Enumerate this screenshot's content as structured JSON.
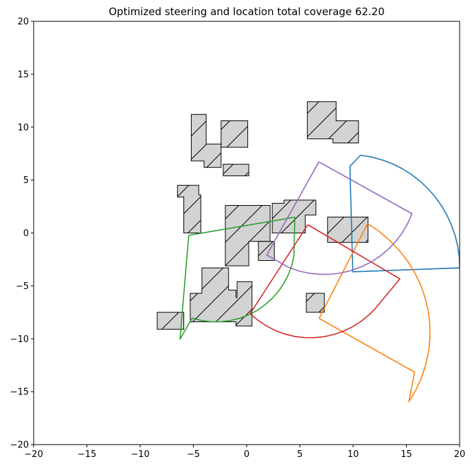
{
  "chart_data": {
    "type": "line",
    "title": "Optimized steering and location total coverage 62.20",
    "xlabel": "",
    "ylabel": "",
    "xlim": [
      -20,
      20
    ],
    "ylim": [
      -20,
      20
    ],
    "xticks": [
      -20,
      -15,
      -10,
      -5,
      0,
      5,
      10,
      15,
      20
    ],
    "yticks": [
      -20,
      -15,
      -10,
      -5,
      0,
      5,
      10,
      15,
      20
    ],
    "xtick_labels": [
      "−20",
      "−15",
      "−10",
      "−5",
      "0",
      "5",
      "10",
      "15",
      "20"
    ],
    "ytick_labels": [
      "−20",
      "−15",
      "−10",
      "−5",
      "0",
      "5",
      "10",
      "15",
      "20"
    ],
    "grid": false,
    "obstacle_style": {
      "fill": "#d3d3d3",
      "stroke": "#000000",
      "hatch": "/"
    },
    "obstacles": [
      [
        [
          -5.2,
          11.2
        ],
        [
          -3.8,
          11.2
        ],
        [
          -3.8,
          8.4
        ],
        [
          -2.4,
          8.4
        ],
        [
          -2.4,
          6.2
        ],
        [
          -4.0,
          6.2
        ],
        [
          -4.0,
          6.8
        ],
        [
          -5.2,
          6.8
        ]
      ],
      [
        [
          -2.4,
          10.6
        ],
        [
          0.1,
          10.6
        ],
        [
          0.1,
          8.1
        ],
        [
          -2.4,
          8.1
        ]
      ],
      [
        [
          -2.2,
          6.5
        ],
        [
          0.2,
          6.5
        ],
        [
          0.2,
          5.4
        ],
        [
          -2.2,
          5.4
        ]
      ],
      [
        [
          5.7,
          12.4
        ],
        [
          8.4,
          12.4
        ],
        [
          8.4,
          10.6
        ],
        [
          10.5,
          10.6
        ],
        [
          10.5,
          8.5
        ],
        [
          8.1,
          8.5
        ],
        [
          8.1,
          8.9
        ],
        [
          5.7,
          8.9
        ]
      ],
      [
        [
          -6.5,
          4.5
        ],
        [
          -4.5,
          4.5
        ],
        [
          -4.5,
          3.6
        ],
        [
          -4.3,
          3.6
        ],
        [
          -4.3,
          0.0
        ],
        [
          -5.9,
          0.0
        ],
        [
          -5.9,
          3.4
        ],
        [
          -6.5,
          3.4
        ]
      ],
      [
        [
          -2.0,
          2.6
        ],
        [
          2.2,
          2.6
        ],
        [
          2.2,
          -0.8
        ],
        [
          1.0,
          -0.8
        ],
        [
          1.0,
          -0.8
        ],
        [
          0.2,
          -0.8
        ],
        [
          0.2,
          -3.1
        ],
        [
          -2.0,
          -3.1
        ]
      ],
      [
        [
          1.1,
          -0.8
        ],
        [
          2.6,
          -0.8
        ],
        [
          2.6,
          -2.6
        ],
        [
          1.1,
          -2.6
        ]
      ],
      [
        [
          2.4,
          2.8
        ],
        [
          3.5,
          2.8
        ],
        [
          3.5,
          3.1
        ],
        [
          6.5,
          3.1
        ],
        [
          6.5,
          1.7
        ],
        [
          5.5,
          1.7
        ],
        [
          5.5,
          0.0
        ],
        [
          2.4,
          0.0
        ]
      ],
      [
        [
          7.6,
          1.5
        ],
        [
          11.4,
          1.5
        ],
        [
          11.4,
          -0.9
        ],
        [
          7.6,
          -0.9
        ]
      ],
      [
        [
          5.6,
          -5.7
        ],
        [
          7.3,
          -5.7
        ],
        [
          7.3,
          -7.5
        ],
        [
          5.6,
          -7.5
        ]
      ],
      [
        [
          -4.2,
          -3.3
        ],
        [
          -1.7,
          -3.3
        ],
        [
          -1.7,
          -5.4
        ],
        [
          -1.0,
          -5.4
        ],
        [
          -1.0,
          -6.1
        ],
        [
          -0.9,
          -6.1
        ],
        [
          -0.9,
          -4.6
        ],
        [
          0.5,
          -4.6
        ],
        [
          0.5,
          -8.8
        ],
        [
          -1.0,
          -8.8
        ],
        [
          -1.0,
          -8.4
        ],
        [
          -5.3,
          -8.4
        ],
        [
          -5.3,
          -5.7
        ],
        [
          -4.2,
          -5.7
        ]
      ],
      [
        [
          -8.4,
          -7.5
        ],
        [
          -5.9,
          -7.5
        ],
        [
          -5.9,
          -9.1
        ],
        [
          -8.4,
          -9.1
        ]
      ]
    ],
    "series": [
      {
        "color": "#1f77b4",
        "points": [
          [
            20.0,
            -3.3
          ],
          [
            19.97,
            -2.27
          ],
          [
            19.82,
            -1.25
          ],
          [
            19.58,
            -0.25
          ],
          [
            19.24,
            0.73
          ],
          [
            18.81,
            1.67
          ],
          [
            18.3,
            2.57
          ],
          [
            17.7,
            3.41
          ],
          [
            17.03,
            4.19
          ],
          [
            16.28,
            4.9
          ],
          [
            15.47,
            5.53
          ],
          [
            14.6,
            6.08
          ],
          [
            13.68,
            6.54
          ],
          [
            12.71,
            6.91
          ],
          [
            11.71,
            7.18
          ],
          [
            10.69,
            7.35
          ],
          [
            9.7,
            6.29
          ],
          [
            9.97,
            -3.67
          ],
          [
            20.0,
            -3.3
          ]
        ]
      },
      {
        "color": "#ff7f0e",
        "points": [
          [
            6.8,
            -8.07
          ],
          [
            11.36,
            0.88
          ],
          [
            12.42,
            0.16
          ],
          [
            13.4,
            -0.68
          ],
          [
            14.3,
            -1.61
          ],
          [
            15.09,
            -2.62
          ],
          [
            15.77,
            -3.72
          ],
          [
            16.33,
            -4.88
          ],
          [
            16.75,
            -6.09
          ],
          [
            17.05,
            -7.34
          ],
          [
            17.2,
            -8.62
          ],
          [
            17.21,
            -9.91
          ],
          [
            17.09,
            -11.19
          ],
          [
            16.82,
            -12.45
          ],
          [
            16.42,
            -13.67
          ],
          [
            15.89,
            -14.84
          ],
          [
            15.23,
            -15.95
          ],
          [
            15.77,
            -13.16
          ],
          [
            6.8,
            -8.07
          ]
        ]
      },
      {
        "color": "#2ca02c",
        "points": [
          [
            -5.44,
            -0.22
          ],
          [
            4.52,
            1.49
          ],
          [
            4.44,
            -2.16
          ],
          [
            4.24,
            -3.05
          ],
          [
            3.93,
            -3.91
          ],
          [
            3.51,
            -4.73
          ],
          [
            3.01,
            -5.48
          ],
          [
            2.41,
            -6.17
          ],
          [
            1.74,
            -6.78
          ],
          [
            1.0,
            -7.31
          ],
          [
            0.2,
            -7.73
          ],
          [
            -0.65,
            -8.06
          ],
          [
            -1.53,
            -8.28
          ],
          [
            -2.44,
            -8.39
          ],
          [
            -3.35,
            -8.39
          ],
          [
            -4.25,
            -8.27
          ],
          [
            -5.13,
            -8.05
          ],
          [
            -6.26,
            -10.04
          ],
          [
            -5.44,
            -0.22
          ]
        ]
      },
      {
        "color": "#d62728",
        "points": [
          [
            5.74,
            0.78
          ],
          [
            0.33,
            -7.62
          ],
          [
            1.05,
            -8.24
          ],
          [
            1.83,
            -8.77
          ],
          [
            2.67,
            -9.21
          ],
          [
            3.55,
            -9.54
          ],
          [
            4.47,
            -9.77
          ],
          [
            5.4,
            -9.89
          ],
          [
            6.35,
            -9.9
          ],
          [
            7.29,
            -9.8
          ],
          [
            8.21,
            -9.59
          ],
          [
            9.1,
            -9.28
          ],
          [
            9.95,
            -8.86
          ],
          [
            10.74,
            -8.35
          ],
          [
            11.47,
            -7.76
          ],
          [
            12.13,
            -7.08
          ],
          [
            14.39,
            -4.34
          ],
          [
            5.74,
            0.78
          ]
        ]
      },
      {
        "color": "#9467bd",
        "points": [
          [
            6.78,
            6.72
          ],
          [
            15.52,
            1.82
          ],
          [
            15.12,
            0.89
          ],
          [
            14.61,
            0.02
          ],
          [
            14.01,
            -0.79
          ],
          [
            13.32,
            -1.52
          ],
          [
            12.55,
            -2.17
          ],
          [
            11.71,
            -2.73
          ],
          [
            10.82,
            -3.18
          ],
          [
            9.88,
            -3.53
          ],
          [
            8.9,
            -3.77
          ],
          [
            7.91,
            -3.9
          ],
          [
            6.91,
            -3.91
          ],
          [
            5.91,
            -3.81
          ],
          [
            4.93,
            -3.6
          ],
          [
            3.98,
            -3.27
          ],
          [
            1.89,
            -2.08
          ],
          [
            6.78,
            6.72
          ]
        ]
      }
    ]
  }
}
